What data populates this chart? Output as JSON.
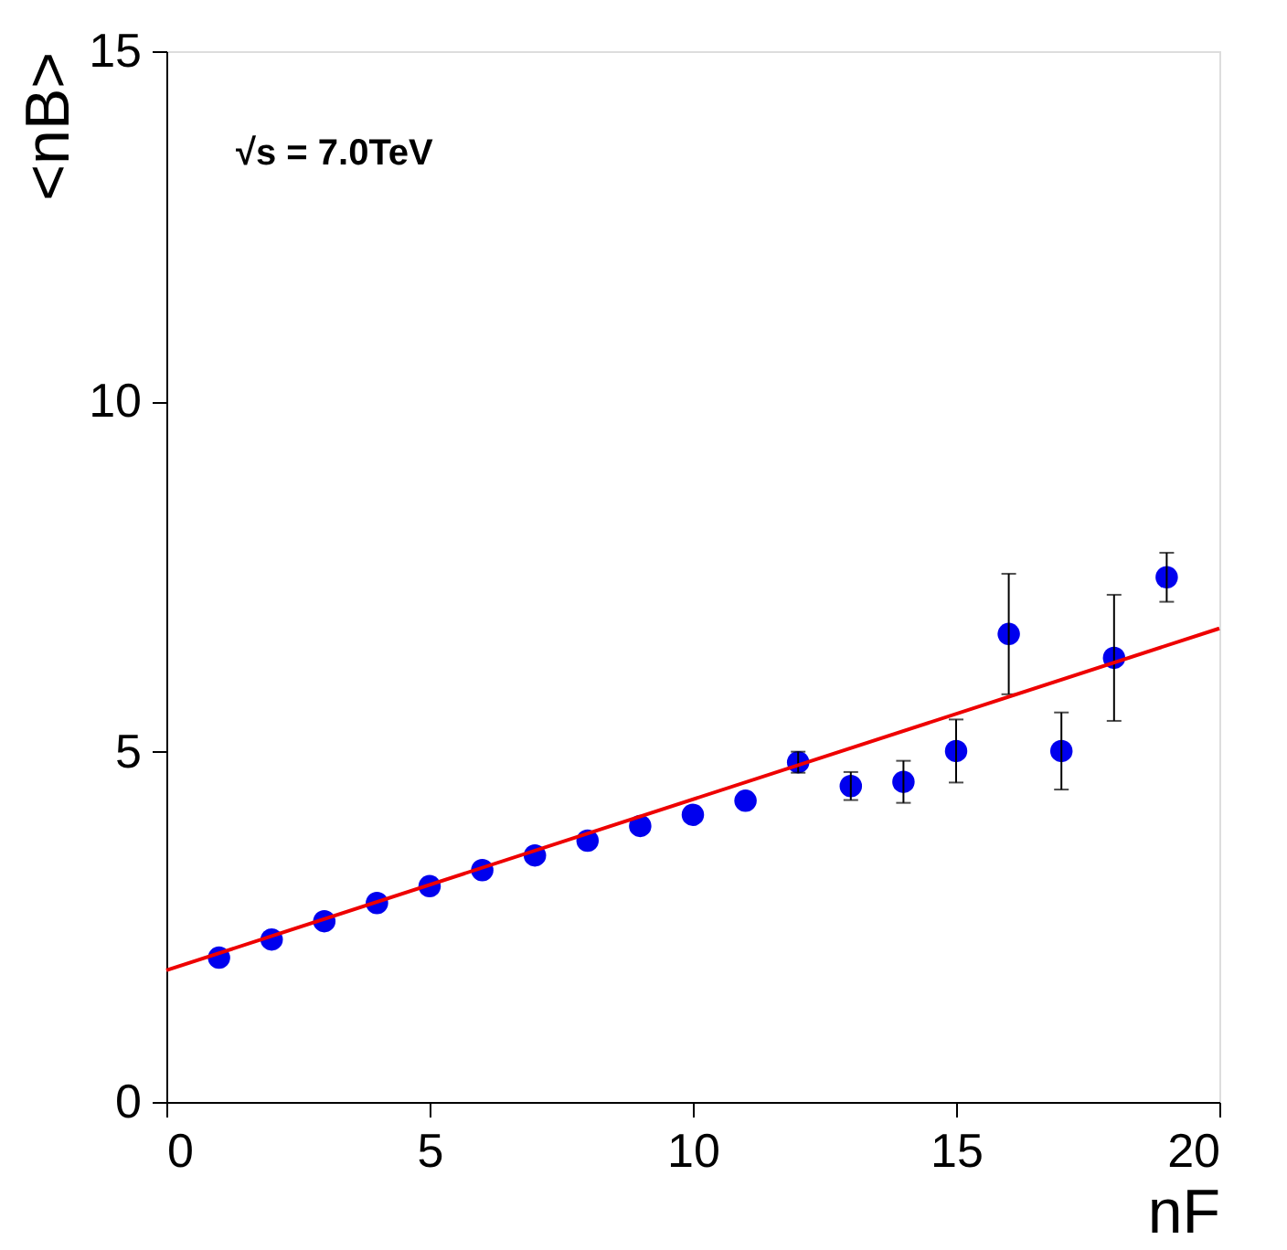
{
  "chart_data": {
    "type": "scatter",
    "xlabel": "nF",
    "ylabel": "<nB>",
    "annotations": [
      "√s = 7.0TeV"
    ],
    "xlim": [
      0,
      20
    ],
    "ylim": [
      0,
      15
    ],
    "xticks": [
      0,
      5,
      10,
      15,
      20
    ],
    "yticks": [
      0,
      5,
      10,
      15
    ],
    "grid": false,
    "marker": "circle",
    "series": [
      {
        "color": "#0000ee",
        "x": [
          1,
          2,
          3,
          4,
          5,
          6,
          7,
          8,
          9,
          10,
          11,
          12,
          13,
          14,
          15,
          16,
          17,
          18,
          19
        ],
        "values": [
          2.06,
          2.32,
          2.58,
          2.84,
          3.08,
          3.31,
          3.52,
          3.73,
          3.94,
          4.1,
          4.3,
          4.85,
          4.51,
          4.57,
          5.01,
          6.68,
          5.01,
          6.34,
          7.49
        ],
        "errors": [
          null,
          null,
          null,
          null,
          null,
          null,
          null,
          null,
          null,
          null,
          null,
          0.15,
          0.2,
          0.3,
          0.45,
          0.86,
          0.55,
          0.9,
          0.35
        ]
      },
      {
        "type": "line",
        "color": "#ee0000",
        "x": [
          0,
          20
        ],
        "values": [
          1.88,
          6.76
        ],
        "marker": "none"
      }
    ]
  }
}
